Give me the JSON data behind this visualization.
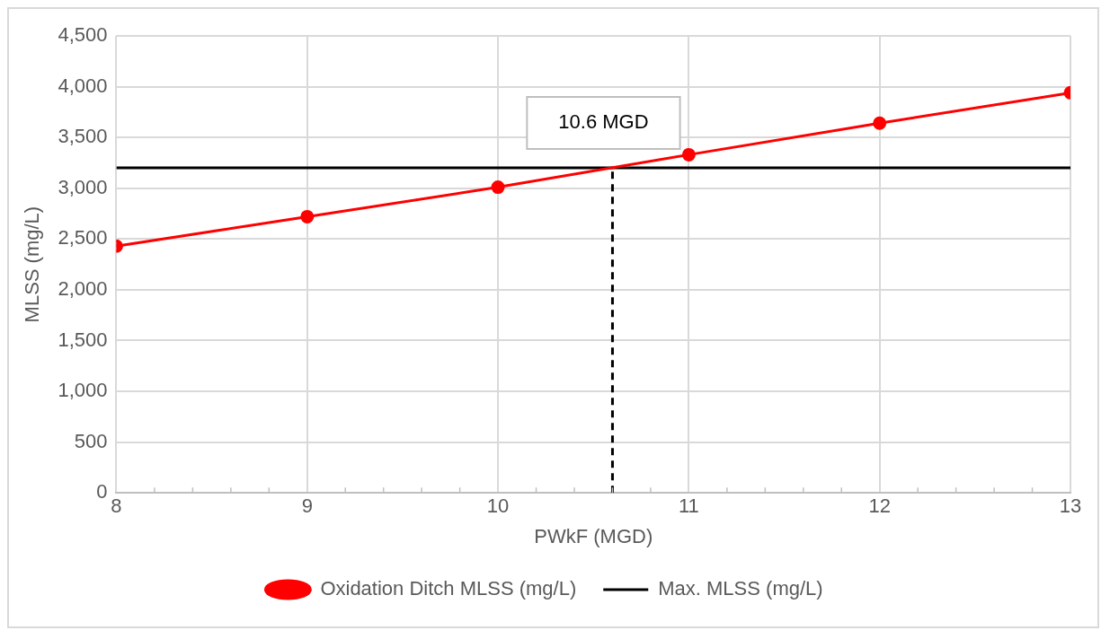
{
  "chart_data": {
    "type": "line",
    "xlabel": "PWkF (MGD)",
    "ylabel": "MLSS (mg/L)",
    "xlim": [
      8,
      13
    ],
    "xticks": [
      8,
      {
        "value": 8.2,
        "label": null
      },
      {
        "value": 8.4,
        "label": null
      },
      {
        "value": 8.6,
        "label": null
      },
      {
        "value": 8.8,
        "label": null
      },
      9,
      {
        "value": 9.2,
        "label": null
      },
      {
        "value": 9.4,
        "label": null
      },
      {
        "value": 9.6,
        "label": null
      },
      {
        "value": 9.8,
        "label": null
      },
      10,
      {
        "value": 10.2,
        "label": null
      },
      {
        "value": 10.4,
        "label": null
      },
      {
        "value": 10.6,
        "label": null
      },
      {
        "value": 10.8,
        "label": null
      },
      11,
      {
        "value": 11.2,
        "label": null
      },
      {
        "value": 11.4,
        "label": null
      },
      {
        "value": 11.6,
        "label": null
      },
      {
        "value": 11.8,
        "label": null
      },
      12,
      {
        "value": 12.2,
        "label": null
      },
      {
        "value": 12.4,
        "label": null
      },
      {
        "value": 12.6,
        "label": null
      },
      {
        "value": 12.8,
        "label": null
      },
      13
    ],
    "ylim": [
      0,
      4500
    ],
    "yticks": [
      {
        "value": 0,
        "label": "0"
      },
      {
        "value": 500,
        "label": "500"
      },
      {
        "value": 1000,
        "label": "1,000"
      },
      {
        "value": 1500,
        "label": "1,500"
      },
      {
        "value": 2000,
        "label": "2,000"
      },
      {
        "value": 2500,
        "label": "2,500"
      },
      {
        "value": 3000,
        "label": "3,000"
      },
      {
        "value": 3500,
        "label": "3,500"
      },
      {
        "value": 4000,
        "label": "4,000"
      },
      {
        "value": 4500,
        "label": "4,500"
      }
    ],
    "grid": true,
    "legend": "bottom",
    "series": [
      {
        "name": "Oxidation Ditch MLSS (mg/L)",
        "color": "#ff0000",
        "marker": "circle",
        "x": [
          8,
          9,
          10,
          11,
          12,
          13
        ],
        "values": [
          2430,
          2720,
          3010,
          3330,
          3640,
          3940
        ]
      },
      {
        "name": "Max. MLSS (mg/L)",
        "color": "#000000",
        "marker": "none",
        "x": [
          8,
          13
        ],
        "values": [
          3200,
          3200
        ]
      },
      {
        "color": "#000000",
        "marker": "none",
        "line_style": "dashed",
        "x": [
          10.6,
          10.6
        ],
        "values": [
          0,
          3200
        ]
      }
    ],
    "annotations": [
      {
        "text": "10.6 MGD",
        "x": 10.6,
        "y": 3200
      }
    ]
  }
}
